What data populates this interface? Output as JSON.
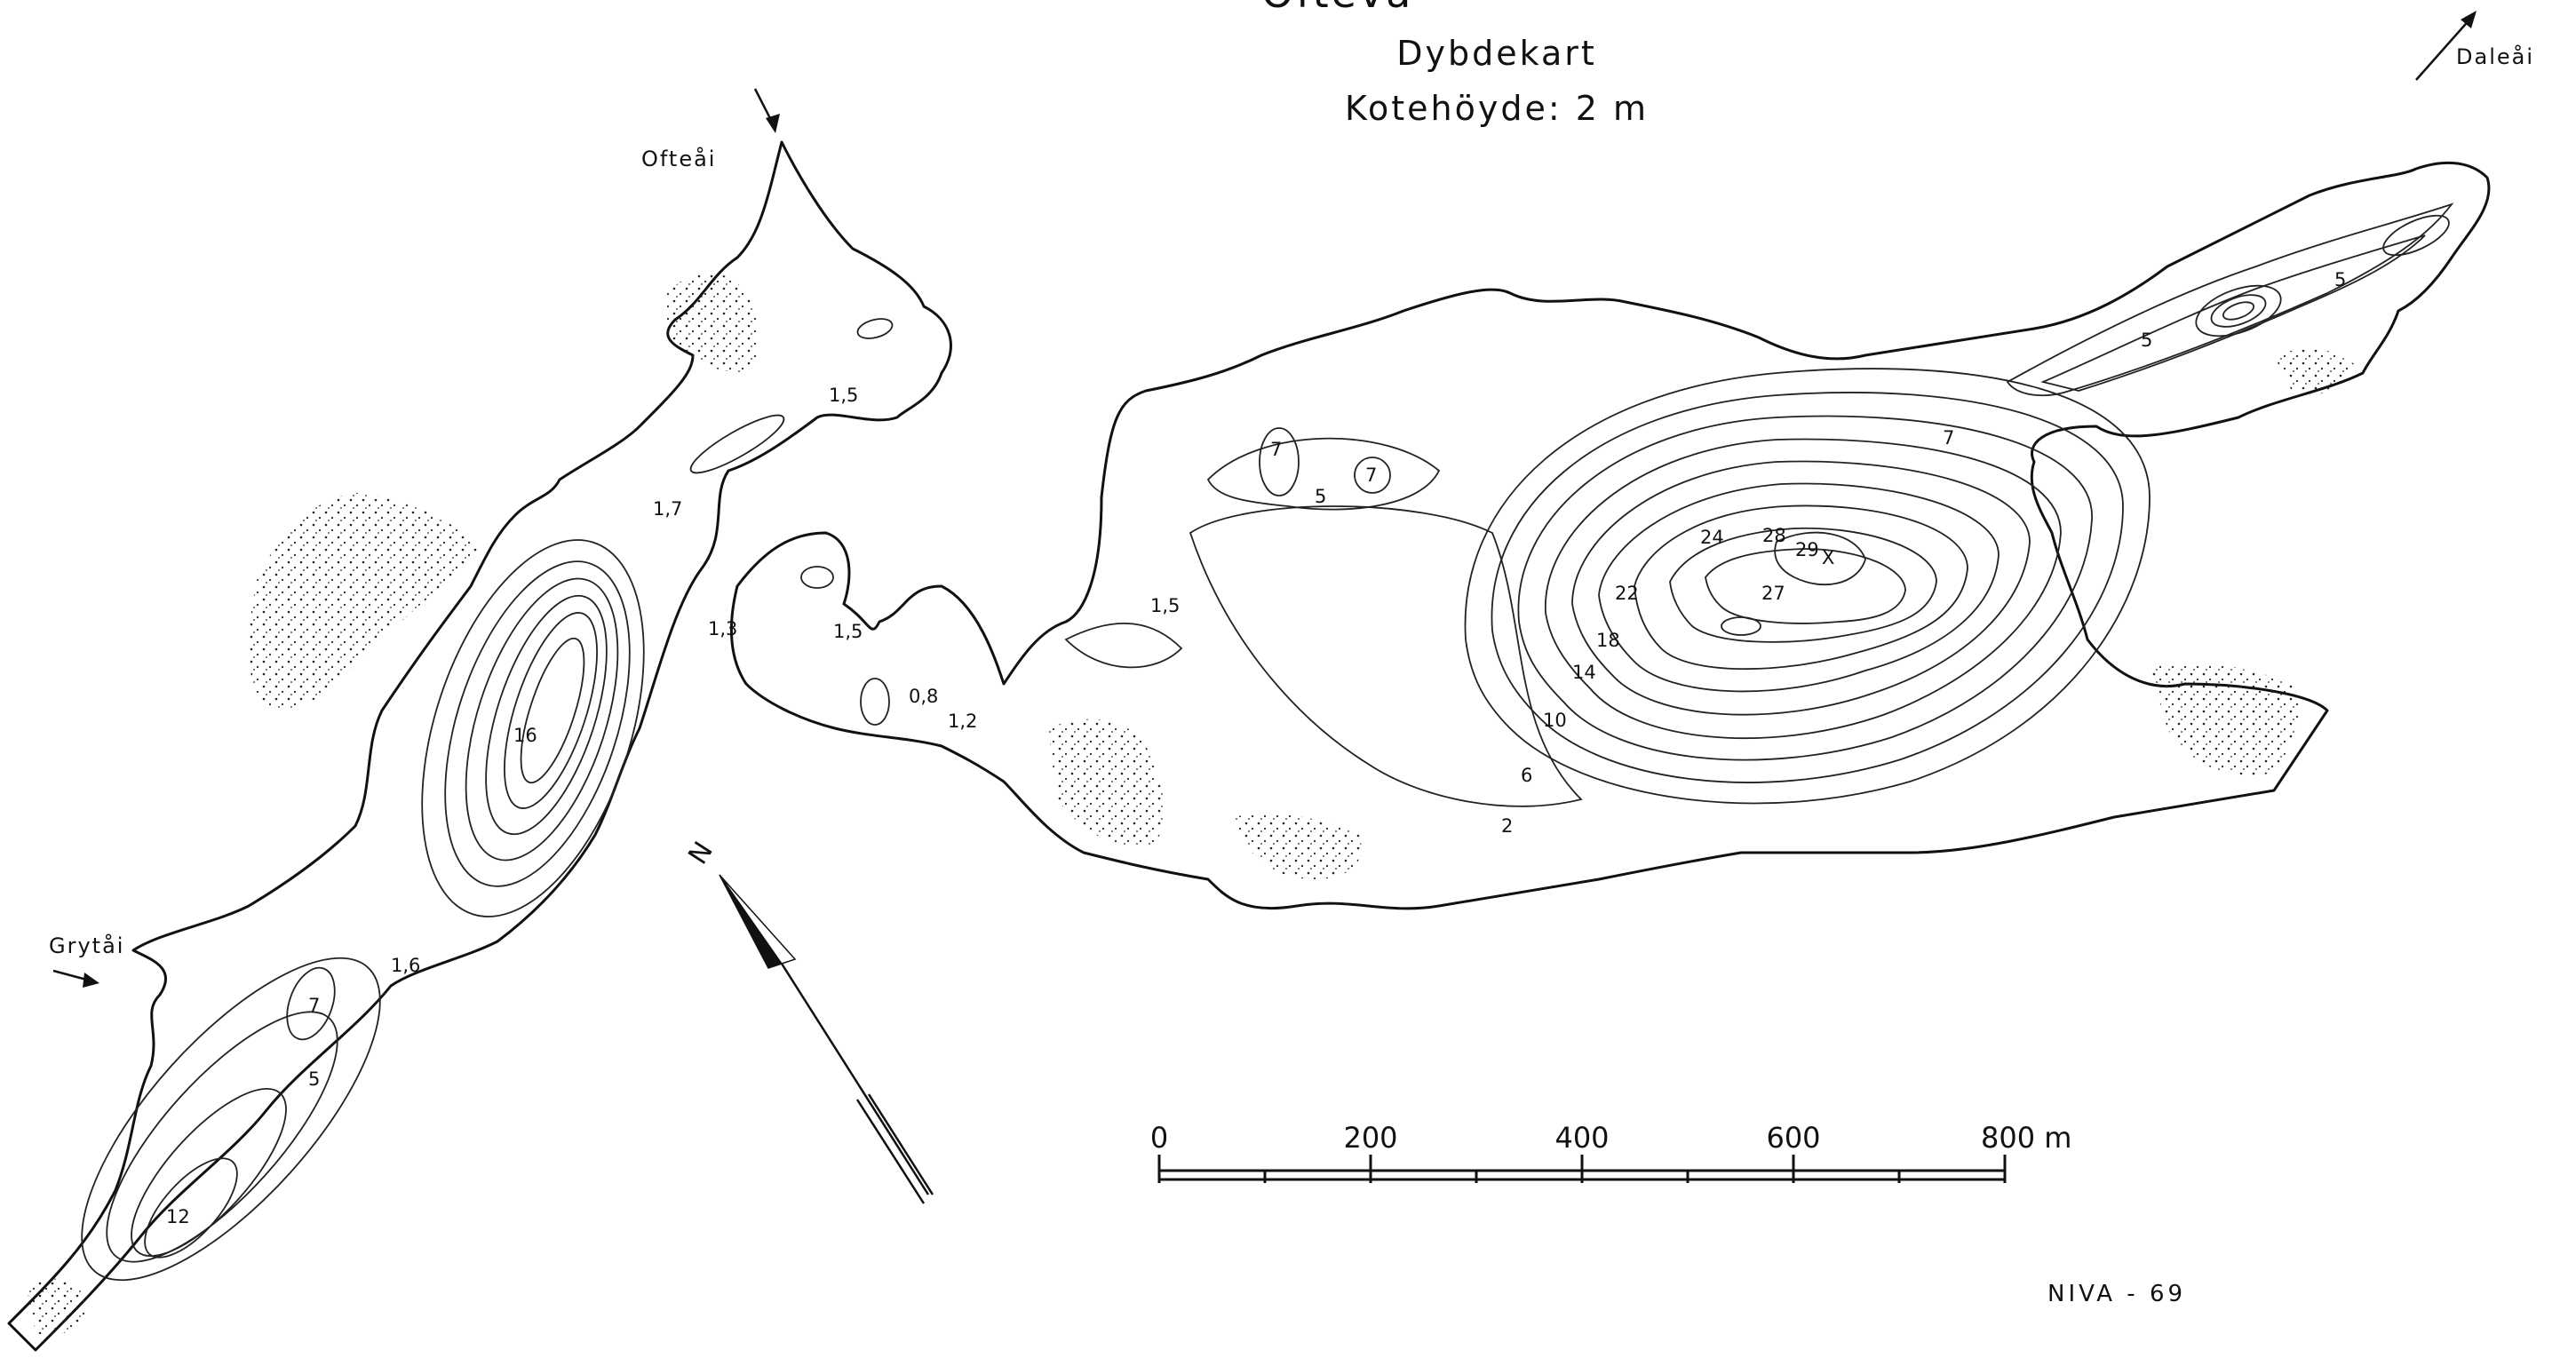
{
  "map": {
    "title_partial": "Ofteva",
    "subtitle": "Dybdekart",
    "contour_interval_text": "Kotehöyde: 2 m",
    "credit": "NIVA - 69",
    "north_symbol": "N",
    "rivers": [
      {
        "id": "ofteai",
        "name": "Ofteåi"
      },
      {
        "id": "daleai",
        "name": "Daleåi"
      },
      {
        "id": "grytai",
        "name": "Grytåi"
      }
    ],
    "scale_bar": {
      "unit": "m",
      "labels": [
        "0",
        "200",
        "400",
        "600",
        "800 m"
      ],
      "values_m": [
        0,
        200,
        400,
        600,
        800
      ]
    },
    "depth_labels": [
      "1,5",
      "1,7",
      "1,3",
      "16",
      "1,5",
      "0,8",
      "1,2",
      "1,6",
      "7",
      "5",
      "12",
      "1,5",
      "7",
      "5",
      "7",
      "24",
      "28",
      "29",
      "X",
      "22",
      "27",
      "18",
      "14",
      "10",
      "6",
      "2",
      "7",
      "5",
      "5"
    ],
    "max_depth_m": 29,
    "colors": {
      "ink": "#111111",
      "paper": "#ffffff"
    }
  }
}
